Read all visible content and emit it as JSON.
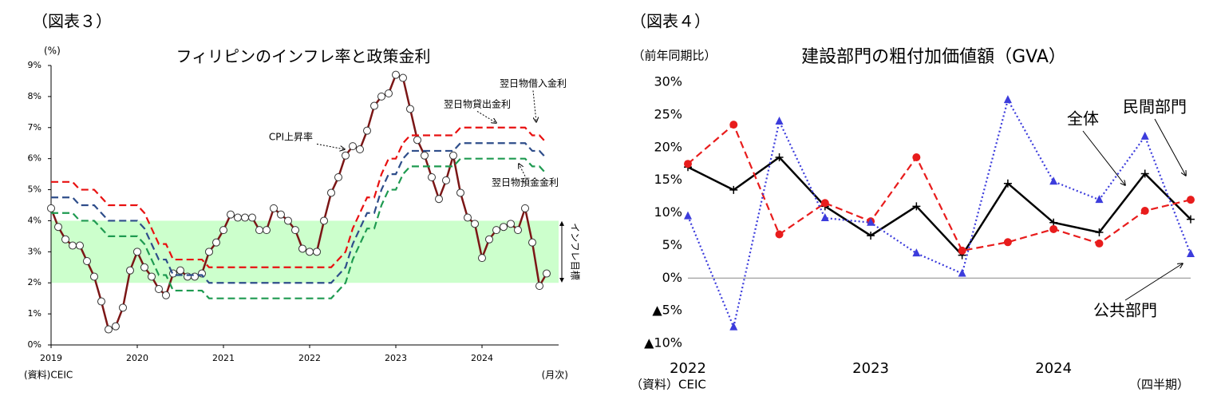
{
  "chart_data": [
    {
      "type": "line",
      "figure_label": "（図表３）",
      "title": "フィリピンのインフレ率と政策金利",
      "y_unit_label": "(%)",
      "x_unit_label": "(月次)",
      "source": "(資料)CEIC",
      "categories": [
        "2019",
        null,
        null,
        null,
        null,
        null,
        null,
        null,
        null,
        null,
        null,
        null,
        "2020",
        null,
        null,
        null,
        null,
        null,
        null,
        null,
        null,
        null,
        null,
        null,
        "2021",
        null,
        null,
        null,
        null,
        null,
        null,
        null,
        null,
        null,
        null,
        null,
        "2022",
        null,
        null,
        null,
        null,
        null,
        null,
        null,
        null,
        null,
        null,
        null,
        "2023",
        null,
        null,
        null,
        null,
        null,
        null,
        null,
        null,
        null,
        null,
        null,
        "2024",
        null,
        null,
        null,
        null,
        null,
        null,
        null,
        null,
        null
      ],
      "ylim": [
        0,
        9
      ],
      "yticks": [
        {
          "value": 0,
          "label": "0%"
        },
        {
          "value": 1,
          "label": "1%"
        },
        {
          "value": 2,
          "label": "2%"
        },
        {
          "value": 3,
          "label": "3%"
        },
        {
          "value": 4,
          "label": "4%"
        },
        {
          "value": 5,
          "label": "5%"
        },
        {
          "value": 6,
          "label": "6%"
        },
        {
          "value": 7,
          "label": "7%"
        },
        {
          "value": 8,
          "label": "8%"
        },
        {
          "value": 9,
          "label": "9%"
        }
      ],
      "band": {
        "range": [
          2,
          4
        ],
        "label": "インフレ目標",
        "color": "#ccffcc"
      },
      "series": [
        {
          "name": "CPI上昇率",
          "color": "#7b1616",
          "line_style": "solid",
          "marker": "circle",
          "values": [
            4.4,
            3.8,
            3.4,
            3.2,
            3.2,
            2.7,
            2.2,
            1.4,
            0.5,
            0.6,
            1.2,
            2.4,
            3.0,
            2.5,
            2.2,
            1.8,
            1.6,
            2.3,
            2.4,
            2.2,
            2.2,
            2.3,
            3.0,
            3.3,
            3.7,
            4.2,
            4.1,
            4.1,
            4.1,
            3.7,
            3.7,
            4.4,
            4.2,
            4.0,
            3.7,
            3.1,
            3.0,
            3.0,
            4.0,
            4.9,
            5.4,
            6.1,
            6.4,
            6.3,
            6.9,
            7.7,
            8.0,
            8.1,
            8.7,
            8.6,
            7.6,
            6.6,
            6.1,
            5.4,
            4.7,
            5.3,
            6.1,
            4.9,
            4.1,
            3.9,
            2.8,
            3.4,
            3.7,
            3.8,
            3.9,
            3.7,
            4.4,
            3.3,
            1.9,
            2.3
          ]
        },
        {
          "name": "翌日物借入金利",
          "color": "#e81010",
          "line_style": "dashed",
          "marker": "none",
          "values": [
            5.25,
            5.25,
            5.25,
            5.25,
            5,
            5,
            5,
            4.75,
            4.5,
            4.5,
            4.5,
            4.5,
            4.5,
            4.25,
            3.75,
            3.25,
            3.25,
            2.75,
            2.75,
            2.75,
            2.75,
            2.75,
            2.5,
            2.5,
            2.5,
            2.5,
            2.5,
            2.5,
            2.5,
            2.5,
            2.5,
            2.5,
            2.5,
            2.5,
            2.5,
            2.5,
            2.5,
            2.5,
            2.5,
            2.5,
            2.75,
            3,
            3.75,
            4.25,
            4.75,
            4.75,
            5.5,
            6,
            6,
            6.5,
            6.75,
            6.75,
            6.75,
            6.75,
            6.75,
            6.75,
            6.75,
            7,
            7,
            7,
            7,
            7,
            7,
            7,
            7,
            7,
            7,
            6.75,
            6.75,
            6.5
          ]
        },
        {
          "name": "翌日物貸出金利",
          "color": "#2e4d8a",
          "line_style": "dashed",
          "marker": "none",
          "values": [
            4.75,
            4.75,
            4.75,
            4.75,
            4.5,
            4.5,
            4.5,
            4.25,
            4,
            4,
            4,
            4,
            4,
            3.75,
            3.25,
            2.75,
            2.75,
            2.25,
            2.25,
            2.25,
            2.25,
            2.25,
            2,
            2,
            2,
            2,
            2,
            2,
            2,
            2,
            2,
            2,
            2,
            2,
            2,
            2,
            2,
            2,
            2,
            2,
            2.25,
            2.5,
            3.25,
            3.75,
            4.25,
            4.25,
            5,
            5.5,
            5.5,
            6,
            6.25,
            6.25,
            6.25,
            6.25,
            6.25,
            6.25,
            6.25,
            6.5,
            6.5,
            6.5,
            6.5,
            6.5,
            6.5,
            6.5,
            6.5,
            6.5,
            6.5,
            6.25,
            6.25,
            6
          ]
        },
        {
          "name": "翌日物預金金利",
          "color": "#1e9a50",
          "line_style": "dashed",
          "marker": "none",
          "values": [
            4.25,
            4.25,
            4.25,
            4.25,
            4,
            4,
            4,
            3.75,
            3.5,
            3.5,
            3.5,
            3.5,
            3.5,
            3.25,
            2.75,
            2.25,
            2.25,
            1.75,
            1.75,
            1.75,
            1.75,
            1.75,
            1.5,
            1.5,
            1.5,
            1.5,
            1.5,
            1.5,
            1.5,
            1.5,
            1.5,
            1.5,
            1.5,
            1.5,
            1.5,
            1.5,
            1.5,
            1.5,
            1.5,
            1.5,
            1.75,
            2,
            2.75,
            3.25,
            3.75,
            3.75,
            4.5,
            5,
            5,
            5.5,
            5.75,
            5.75,
            5.75,
            5.75,
            5.75,
            5.75,
            5.75,
            6,
            6,
            6,
            6,
            6,
            6,
            6,
            6,
            6,
            6,
            5.75,
            5.75,
            5.5
          ]
        }
      ]
    },
    {
      "type": "line",
      "figure_label": "（図表４）",
      "title": "建設部門の粗付加価値額（GVA）",
      "y_unit_label": "（前年同期比）",
      "x_unit_label": "（四半期）",
      "source": "（資料）CEIC",
      "categories": [
        "2022",
        null,
        null,
        null,
        "2023",
        null,
        null,
        null,
        "2024",
        null,
        null,
        null
      ],
      "ylim": [
        -10,
        30
      ],
      "yticks": [
        {
          "value": -10,
          "label": "▲10%"
        },
        {
          "value": -5,
          "label": "▲5%"
        },
        {
          "value": 0,
          "label": "0%"
        },
        {
          "value": 5,
          "label": "5%"
        },
        {
          "value": 10,
          "label": "10%"
        },
        {
          "value": 15,
          "label": "15%"
        },
        {
          "value": 20,
          "label": "20%"
        },
        {
          "value": 25,
          "label": "25%"
        },
        {
          "value": 30,
          "label": "30%"
        }
      ],
      "series": [
        {
          "name": "全体",
          "color": "#000000",
          "line_style": "solid",
          "marker": "plus",
          "values": [
            17,
            13.5,
            18.5,
            11,
            6.5,
            11,
            3.5,
            14.5,
            8.5,
            7,
            16,
            9
          ]
        },
        {
          "name": "民間部門",
          "color": "#e81c1c",
          "line_style": "dashed",
          "marker": "circle-filled",
          "values": [
            17.5,
            23.5,
            6.7,
            11.5,
            8.7,
            18.5,
            4.2,
            5.5,
            7.5,
            5.3,
            10.3,
            12
          ]
        },
        {
          "name": "公共部門",
          "color": "#3c3cdc",
          "line_style": "dotted",
          "marker": "triangle",
          "values": [
            9.5,
            -7.5,
            24,
            9.2,
            8.5,
            3.8,
            0.7,
            27.3,
            14.8,
            12,
            21.7,
            3.7
          ]
        }
      ]
    }
  ]
}
